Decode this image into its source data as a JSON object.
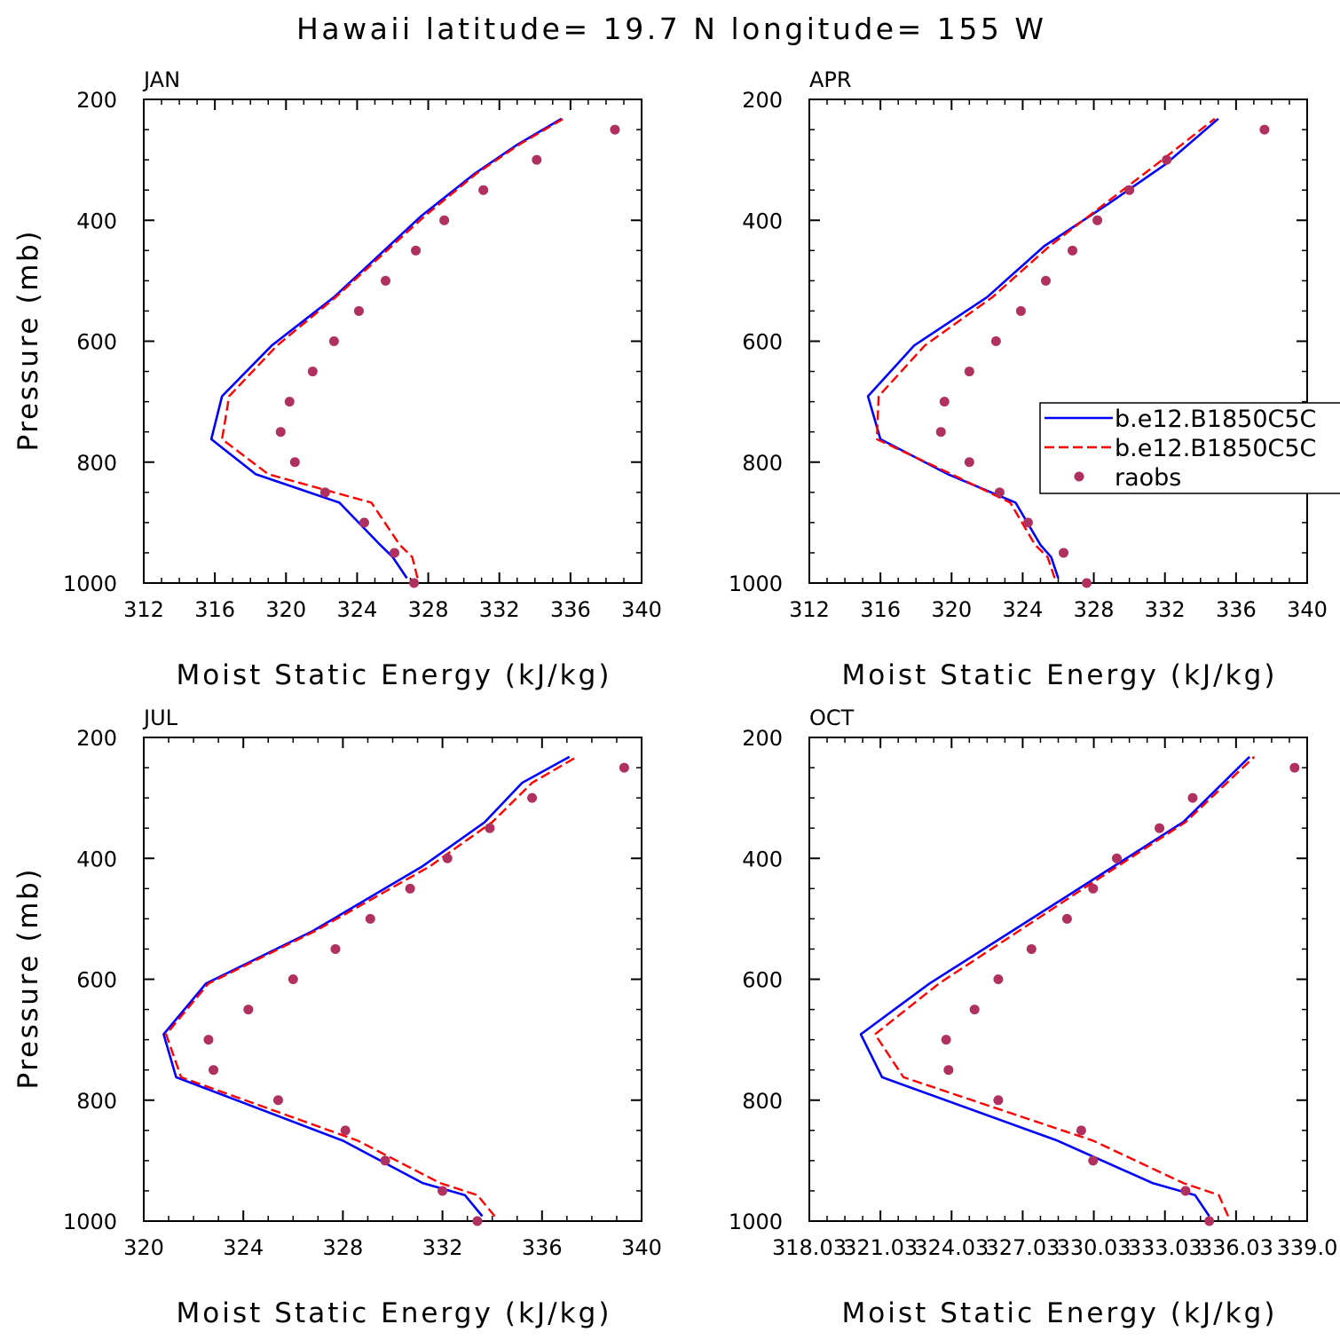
{
  "figure": {
    "title": "Hawaii  latitude= 19.7 N longitude= 155 W"
  },
  "legend": {
    "entries": [
      {
        "label": "b.e12.B1850C5C",
        "style": "solid",
        "color": "#0000ff"
      },
      {
        "label": "b.e12.B1850C5C",
        "style": "dashed",
        "color": "#ff0000"
      },
      {
        "label": "raobs",
        "style": "dot",
        "color": "#b03060"
      }
    ],
    "placement": "right of APR panel"
  },
  "colors": {
    "model_solid": "#0000ff",
    "model_dashed": "#ff0000",
    "raobs": "#b03060"
  },
  "chart_data": [
    {
      "type": "line",
      "panel_label": "JAN",
      "xlabel": "Moist Static Energy (kJ/kg)",
      "ylabel": "Pressure (mb)",
      "xlim": [
        312,
        340
      ],
      "ylim": [
        200,
        1000
      ],
      "y_inverted": true,
      "x_ticks": [
        312,
        316,
        320,
        324,
        328,
        332,
        336,
        340
      ],
      "x_tick_labels": [
        "312",
        "316",
        "320",
        "324",
        "328",
        "332",
        "336",
        "340"
      ],
      "y_ticks": [
        200,
        400,
        600,
        800,
        1000
      ],
      "y_tick_labels": [
        "200",
        "400",
        "600",
        "800",
        "1000"
      ],
      "series": [
        {
          "name": "b.e12.B1850C5C",
          "style": "solid",
          "color": "#0000ff",
          "x": [
            326.8,
            326.0,
            325.3,
            323.0,
            318.3,
            315.8,
            316.4,
            319.2,
            322.7,
            327.6,
            330.6,
            333.0,
            335.5
          ],
          "y": [
            992,
            957,
            937,
            867,
            820,
            762,
            691,
            607,
            527,
            393,
            323,
            275,
            232
          ]
        },
        {
          "name": "b.e12.B1850C5C",
          "style": "dashed",
          "color": "#ff0000",
          "x": [
            327.4,
            327.1,
            326.4,
            324.8,
            319.0,
            316.4,
            316.8,
            319.5,
            322.8,
            327.8,
            330.7,
            333.1,
            335.6
          ],
          "y": [
            992,
            957,
            937,
            867,
            820,
            762,
            691,
            607,
            527,
            393,
            323,
            275,
            232
          ]
        },
        {
          "name": "raobs",
          "style": "dot",
          "color": "#b03060",
          "x": [
            327.2,
            326.1,
            324.4,
            322.2,
            320.5,
            319.7,
            320.2,
            321.5,
            322.7,
            324.1,
            325.6,
            327.3,
            328.9,
            331.1,
            334.1,
            338.5
          ],
          "y": [
            1000,
            950,
            900,
            850,
            800,
            750,
            700,
            650,
            600,
            550,
            500,
            450,
            400,
            350,
            300,
            250
          ]
        }
      ]
    },
    {
      "type": "line",
      "panel_label": "APR",
      "xlabel": "Moist Static Energy (kJ/kg)",
      "ylabel": "",
      "xlim": [
        312,
        340
      ],
      "ylim": [
        200,
        1000
      ],
      "y_inverted": true,
      "x_ticks": [
        312,
        316,
        320,
        324,
        328,
        332,
        336,
        340
      ],
      "x_tick_labels": [
        "312",
        "316",
        "320",
        "324",
        "328",
        "332",
        "336",
        "340"
      ],
      "y_ticks": [
        200,
        400,
        600,
        800,
        1000
      ],
      "y_tick_labels": [
        "200",
        "400",
        "600",
        "800",
        "1000"
      ],
      "series": [
        {
          "name": "b.e12.B1850C5C",
          "style": "solid",
          "color": "#0000ff",
          "x": [
            326.0,
            325.6,
            325.0,
            323.6,
            319.8,
            316.0,
            315.3,
            317.9,
            322.0,
            325.2,
            328.8,
            332.0,
            335.0
          ],
          "y": [
            992,
            957,
            937,
            867,
            820,
            762,
            691,
            607,
            527,
            443,
            373,
            308,
            232
          ]
        },
        {
          "name": "b.e12.B1850C5C",
          "style": "dashed",
          "color": "#ff0000",
          "x": [
            325.8,
            325.4,
            324.7,
            323.3,
            320.0,
            315.8,
            315.9,
            318.5,
            322.3,
            325.5,
            328.6,
            331.5,
            334.8
          ],
          "y": [
            992,
            957,
            937,
            867,
            820,
            762,
            691,
            607,
            527,
            443,
            373,
            308,
            232
          ]
        },
        {
          "name": "raobs",
          "style": "dot",
          "color": "#b03060",
          "x": [
            327.6,
            326.3,
            324.3,
            322.7,
            321.0,
            319.4,
            319.6,
            321.0,
            322.5,
            323.9,
            325.3,
            326.8,
            328.2,
            330.0,
            332.1,
            337.6
          ],
          "y": [
            1000,
            950,
            900,
            850,
            800,
            750,
            700,
            650,
            600,
            550,
            500,
            450,
            400,
            350,
            300,
            250
          ]
        }
      ]
    },
    {
      "type": "line",
      "panel_label": "JUL",
      "xlabel": "Moist Static Energy (kJ/kg)",
      "ylabel": "Pressure (mb)",
      "xlim": [
        320,
        340
      ],
      "ylim": [
        200,
        1000
      ],
      "y_inverted": true,
      "x_ticks": [
        320,
        324,
        328,
        332,
        336,
        340
      ],
      "x_tick_labels": [
        "320",
        "324",
        "328",
        "332",
        "336",
        "340"
      ],
      "y_ticks": [
        200,
        400,
        600,
        800,
        1000
      ],
      "y_tick_labels": [
        "200",
        "400",
        "600",
        "800",
        "1000"
      ],
      "series": [
        {
          "name": "b.e12.B1850C5C",
          "style": "solid",
          "color": "#0000ff",
          "x": [
            333.6,
            332.9,
            331.2,
            328.0,
            321.3,
            320.8,
            322.5,
            326.8,
            331.2,
            333.7,
            335.2,
            337.1
          ],
          "y": [
            992,
            957,
            937,
            867,
            762,
            691,
            607,
            520,
            413,
            340,
            275,
            232
          ]
        },
        {
          "name": "b.e12.B1850C5C",
          "style": "dashed",
          "color": "#ff0000",
          "x": [
            334.1,
            333.4,
            331.9,
            328.6,
            321.5,
            320.9,
            322.6,
            326.9,
            331.5,
            334.0,
            335.6,
            337.4
          ],
          "y": [
            992,
            957,
            937,
            867,
            762,
            691,
            607,
            520,
            413,
            340,
            275,
            232
          ]
        },
        {
          "name": "raobs",
          "style": "dot",
          "color": "#b03060",
          "x": [
            333.4,
            332.0,
            329.7,
            328.1,
            325.4,
            322.8,
            322.6,
            324.2,
            326.0,
            327.7,
            329.1,
            330.7,
            332.2,
            333.9,
            335.6,
            339.3
          ],
          "y": [
            1000,
            950,
            900,
            850,
            800,
            750,
            700,
            650,
            600,
            550,
            500,
            450,
            400,
            350,
            300,
            250
          ]
        }
      ]
    },
    {
      "type": "line",
      "panel_label": "OCT",
      "xlabel": "Moist Static Energy (kJ/kg)",
      "ylabel": "",
      "xlim": [
        318.03,
        339.03
      ],
      "ylim": [
        200,
        1000
      ],
      "y_inverted": true,
      "x_ticks": [
        318.03,
        321.03,
        324.03,
        327.03,
        330.03,
        333.03,
        336.03,
        339.03
      ],
      "x_tick_labels": [
        "318.03",
        "321.03",
        "324.03",
        "327.03",
        "330.03",
        "333.03",
        "336.03",
        "339.0"
      ],
      "y_ticks": [
        200,
        400,
        600,
        800,
        1000
      ],
      "y_tick_labels": [
        "200",
        "400",
        "600",
        "800",
        "1000"
      ],
      "series": [
        {
          "name": "b.e12.B1850C5C",
          "style": "solid",
          "color": "#0000ff",
          "x": [
            334.9,
            334.3,
            332.5,
            328.5,
            321.1,
            320.2,
            323.1,
            329.0,
            333.8,
            336.6
          ],
          "y": [
            992,
            957,
            937,
            867,
            762,
            691,
            607,
            460,
            340,
            232
          ]
        },
        {
          "name": "b.e12.B1850C5C",
          "style": "dashed",
          "color": "#ff0000",
          "x": [
            335.7,
            335.3,
            333.8,
            330.0,
            322.0,
            320.8,
            323.5,
            329.2,
            333.9,
            336.8
          ],
          "y": [
            992,
            957,
            937,
            867,
            762,
            691,
            607,
            460,
            340,
            232
          ]
        },
        {
          "name": "raobs",
          "style": "dot",
          "color": "#b03060",
          "x": [
            334.9,
            333.9,
            330.0,
            329.5,
            326.0,
            323.9,
            323.8,
            325.0,
            326.0,
            327.4,
            328.9,
            330.0,
            331.0,
            332.8,
            334.2,
            338.5
          ],
          "y": [
            1000,
            950,
            900,
            850,
            800,
            750,
            700,
            650,
            600,
            550,
            500,
            450,
            400,
            350,
            300,
            250
          ]
        }
      ]
    }
  ]
}
